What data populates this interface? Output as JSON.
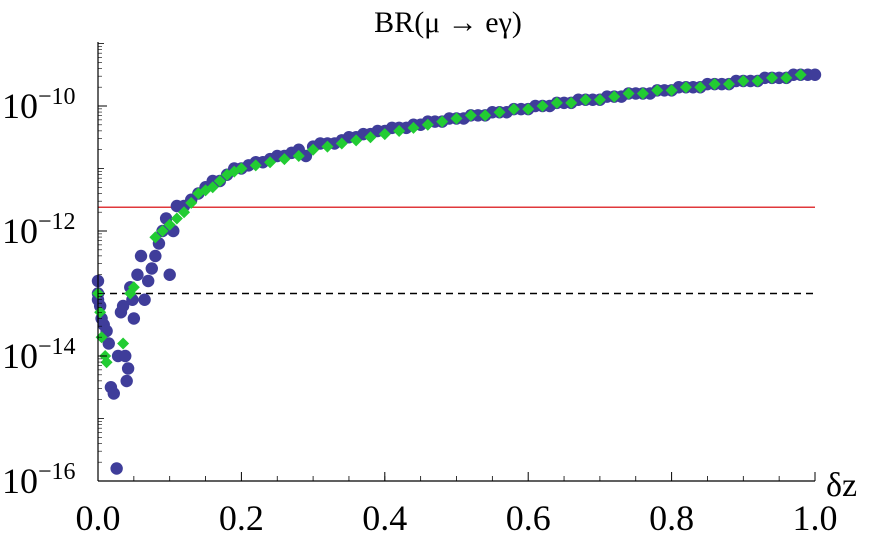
{
  "chart_data": {
    "type": "scatter",
    "title": "BR(μ → eγ)",
    "xlabel": "δz",
    "ylabel": "",
    "xlim": [
      0.0,
      1.0
    ],
    "ylim_log10": [
      -16,
      -9
    ],
    "yscale": "log",
    "grid": false,
    "x_ticks": [
      0.0,
      0.2,
      0.4,
      0.6,
      0.8,
      1.0
    ],
    "x_tick_labels": [
      "0.0",
      "0.2",
      "0.4",
      "0.6",
      "0.8",
      "1.0"
    ],
    "y_ticks_log10": [
      -16,
      -14,
      -12,
      -10
    ],
    "y_tick_bases": [
      "10",
      "10",
      "10",
      "10"
    ],
    "y_tick_exponents": [
      "−16",
      "−14",
      "−12",
      "−10"
    ],
    "reference_lines": [
      {
        "log10_value": -11.62,
        "color": "#e0383b",
        "style": "solid"
      },
      {
        "log10_value": -13.0,
        "color": "#000000",
        "style": "dashed"
      }
    ],
    "series": [
      {
        "marker": "circle",
        "color": "#3f3d9a",
        "points": [
          [
            0.0,
            -12.8
          ],
          [
            0.0,
            -13.0
          ],
          [
            0.0,
            -13.1
          ],
          [
            0.003,
            -13.2
          ],
          [
            0.005,
            -13.4
          ],
          [
            0.008,
            -13.5
          ],
          [
            0.012,
            -13.6
          ],
          [
            0.015,
            -13.8
          ],
          [
            0.018,
            -14.5
          ],
          [
            0.022,
            -14.6
          ],
          [
            0.026,
            -15.8
          ],
          [
            0.028,
            -14.0
          ],
          [
            0.032,
            -13.3
          ],
          [
            0.035,
            -13.2
          ],
          [
            0.038,
            -14.0
          ],
          [
            0.04,
            -14.4
          ],
          [
            0.042,
            -14.2
          ],
          [
            0.045,
            -12.9
          ],
          [
            0.048,
            -13.1
          ],
          [
            0.05,
            -13.4
          ],
          [
            0.055,
            -12.7
          ],
          [
            0.06,
            -12.4
          ],
          [
            0.065,
            -13.1
          ],
          [
            0.07,
            -12.8
          ],
          [
            0.075,
            -12.6
          ],
          [
            0.08,
            -12.4
          ],
          [
            0.085,
            -12.2
          ],
          [
            0.09,
            -12.0
          ],
          [
            0.095,
            -11.8
          ],
          [
            0.1,
            -12.7
          ],
          [
            0.105,
            -12.0
          ],
          [
            0.11,
            -11.6
          ],
          [
            0.12,
            -11.6
          ],
          [
            0.13,
            -11.5
          ],
          [
            0.14,
            -11.4
          ],
          [
            0.15,
            -11.3
          ],
          [
            0.16,
            -11.2
          ],
          [
            0.17,
            -11.2
          ],
          [
            0.18,
            -11.1
          ],
          [
            0.19,
            -11.0
          ],
          [
            0.2,
            -11.0
          ],
          [
            0.21,
            -10.95
          ],
          [
            0.22,
            -10.9
          ],
          [
            0.23,
            -10.9
          ],
          [
            0.24,
            -10.85
          ],
          [
            0.25,
            -10.8
          ],
          [
            0.26,
            -10.8
          ],
          [
            0.27,
            -10.75
          ],
          [
            0.28,
            -10.7
          ],
          [
            0.29,
            -10.8
          ],
          [
            0.3,
            -10.65
          ],
          [
            0.31,
            -10.6
          ],
          [
            0.32,
            -10.6
          ],
          [
            0.33,
            -10.6
          ],
          [
            0.34,
            -10.55
          ],
          [
            0.35,
            -10.5
          ],
          [
            0.36,
            -10.5
          ],
          [
            0.37,
            -10.45
          ],
          [
            0.38,
            -10.45
          ],
          [
            0.39,
            -10.4
          ],
          [
            0.4,
            -10.4
          ],
          [
            0.41,
            -10.35
          ],
          [
            0.42,
            -10.35
          ],
          [
            0.43,
            -10.35
          ],
          [
            0.44,
            -10.3
          ],
          [
            0.45,
            -10.3
          ],
          [
            0.46,
            -10.25
          ],
          [
            0.47,
            -10.25
          ],
          [
            0.48,
            -10.25
          ],
          [
            0.49,
            -10.2
          ],
          [
            0.5,
            -10.2
          ],
          [
            0.51,
            -10.2
          ],
          [
            0.52,
            -10.15
          ],
          [
            0.53,
            -10.15
          ],
          [
            0.54,
            -10.15
          ],
          [
            0.55,
            -10.1
          ],
          [
            0.56,
            -10.1
          ],
          [
            0.57,
            -10.1
          ],
          [
            0.58,
            -10.05
          ],
          [
            0.59,
            -10.05
          ],
          [
            0.6,
            -10.05
          ],
          [
            0.61,
            -10.0
          ],
          [
            0.62,
            -10.0
          ],
          [
            0.63,
            -10.0
          ],
          [
            0.64,
            -9.95
          ],
          [
            0.65,
            -9.95
          ],
          [
            0.66,
            -9.95
          ],
          [
            0.67,
            -9.9
          ],
          [
            0.68,
            -9.9
          ],
          [
            0.69,
            -9.9
          ],
          [
            0.7,
            -9.9
          ],
          [
            0.71,
            -9.85
          ],
          [
            0.72,
            -9.85
          ],
          [
            0.73,
            -9.85
          ],
          [
            0.74,
            -9.8
          ],
          [
            0.75,
            -9.8
          ],
          [
            0.76,
            -9.8
          ],
          [
            0.77,
            -9.8
          ],
          [
            0.78,
            -9.75
          ],
          [
            0.79,
            -9.75
          ],
          [
            0.8,
            -9.75
          ],
          [
            0.81,
            -9.7
          ],
          [
            0.82,
            -9.7
          ],
          [
            0.83,
            -9.7
          ],
          [
            0.84,
            -9.7
          ],
          [
            0.85,
            -9.65
          ],
          [
            0.86,
            -9.65
          ],
          [
            0.87,
            -9.65
          ],
          [
            0.88,
            -9.65
          ],
          [
            0.89,
            -9.6
          ],
          [
            0.9,
            -9.6
          ],
          [
            0.91,
            -9.6
          ],
          [
            0.92,
            -9.6
          ],
          [
            0.93,
            -9.55
          ],
          [
            0.94,
            -9.55
          ],
          [
            0.95,
            -9.55
          ],
          [
            0.96,
            -9.55
          ],
          [
            0.97,
            -9.5
          ],
          [
            0.98,
            -9.5
          ],
          [
            0.99,
            -9.5
          ],
          [
            1.0,
            -9.5
          ]
        ]
      },
      {
        "marker": "diamond",
        "color": "#22cc33",
        "points": [
          [
            0.0,
            -13.0
          ],
          [
            0.003,
            -13.3
          ],
          [
            0.005,
            -13.7
          ],
          [
            0.01,
            -14.0
          ],
          [
            0.012,
            -14.1
          ],
          [
            0.035,
            -13.8
          ],
          [
            0.045,
            -13.0
          ],
          [
            0.05,
            -12.9
          ],
          [
            0.08,
            -12.1
          ],
          [
            0.09,
            -12.0
          ],
          [
            0.1,
            -11.9
          ],
          [
            0.11,
            -11.8
          ],
          [
            0.12,
            -11.7
          ],
          [
            0.13,
            -11.55
          ],
          [
            0.14,
            -11.4
          ],
          [
            0.15,
            -11.35
          ],
          [
            0.16,
            -11.3
          ],
          [
            0.17,
            -11.2
          ],
          [
            0.18,
            -11.1
          ],
          [
            0.19,
            -11.05
          ],
          [
            0.2,
            -11.0
          ],
          [
            0.22,
            -10.95
          ],
          [
            0.24,
            -10.9
          ],
          [
            0.26,
            -10.85
          ],
          [
            0.28,
            -10.8
          ],
          [
            0.3,
            -10.7
          ],
          [
            0.32,
            -10.65
          ],
          [
            0.34,
            -10.6
          ],
          [
            0.36,
            -10.55
          ],
          [
            0.38,
            -10.5
          ],
          [
            0.4,
            -10.45
          ],
          [
            0.42,
            -10.4
          ],
          [
            0.44,
            -10.35
          ],
          [
            0.46,
            -10.3
          ],
          [
            0.48,
            -10.25
          ],
          [
            0.5,
            -10.2
          ],
          [
            0.52,
            -10.15
          ],
          [
            0.54,
            -10.15
          ],
          [
            0.56,
            -10.1
          ],
          [
            0.58,
            -10.05
          ],
          [
            0.6,
            -10.05
          ],
          [
            0.62,
            -10.0
          ],
          [
            0.64,
            -9.95
          ],
          [
            0.66,
            -9.95
          ],
          [
            0.68,
            -9.9
          ],
          [
            0.7,
            -9.9
          ],
          [
            0.72,
            -9.85
          ],
          [
            0.74,
            -9.8
          ],
          [
            0.76,
            -9.8
          ],
          [
            0.78,
            -9.75
          ],
          [
            0.8,
            -9.75
          ],
          [
            0.82,
            -9.7
          ],
          [
            0.84,
            -9.7
          ],
          [
            0.86,
            -9.65
          ],
          [
            0.88,
            -9.65
          ],
          [
            0.9,
            -9.6
          ],
          [
            0.92,
            -9.6
          ],
          [
            0.94,
            -9.55
          ],
          [
            0.96,
            -9.55
          ],
          [
            0.98,
            -9.5
          ]
        ]
      }
    ]
  }
}
